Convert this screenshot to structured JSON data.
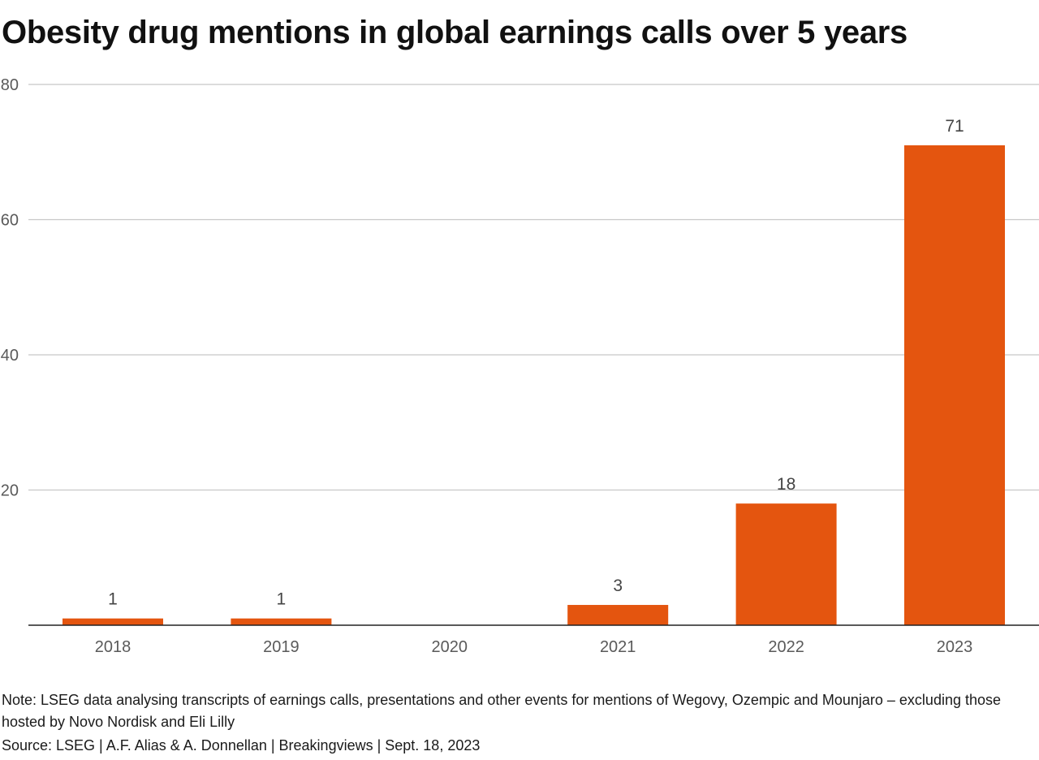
{
  "chart_data": {
    "type": "bar",
    "title": "Obesity drug mentions in global earnings calls over 5 years",
    "categories": [
      "2018",
      "2019",
      "2020",
      "2021",
      "2022",
      "2023"
    ],
    "values": [
      1,
      1,
      0,
      3,
      18,
      71
    ],
    "data_labels": [
      "1",
      "1",
      "",
      "3",
      "18",
      "71"
    ],
    "ylim": [
      0,
      80
    ],
    "yticks": [
      0,
      20,
      40,
      60,
      80
    ],
    "ytick_labels": [
      "",
      "20",
      "40",
      "60",
      "80"
    ],
    "xlabel": "",
    "ylabel": "",
    "grid": true,
    "legend": "none",
    "bar_color": "#e4550f",
    "grid_color": "#c8c8c8",
    "axis_color": "#222222"
  },
  "footer": {
    "note": "Note: LSEG data analysing transcripts of earnings calls, presentations and other events for mentions of Wegovy, Ozempic and Mounjaro – excluding those hosted by Novo Nordisk and Eli Lilly",
    "source": "Source: LSEG | A.F. Alias & A. Donnellan | Breakingviews | Sept. 18, 2023"
  }
}
